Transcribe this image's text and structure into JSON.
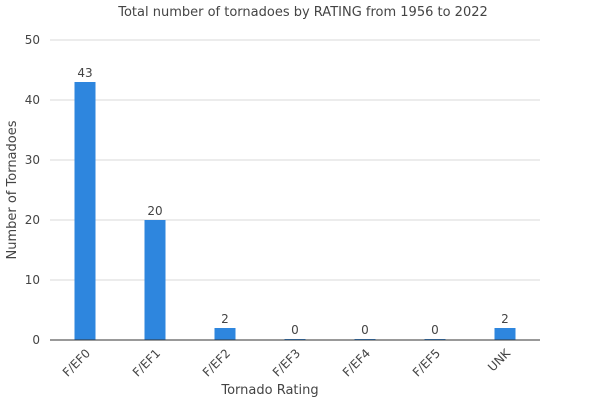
{
  "chart_data": {
    "type": "bar",
    "title": "Total number of tornadoes by RATING from 1956 to 2022",
    "xlabel": "Tornado Rating",
    "ylabel": "Number of Tornadoes",
    "categories": [
      "F/EF0",
      "F/EF1",
      "F/EF2",
      "F/EF3",
      "F/EF4",
      "F/EF5",
      "UNK"
    ],
    "values": [
      43,
      20,
      2,
      0,
      0,
      0,
      2
    ],
    "ylim": [
      0,
      50
    ],
    "yticks": [
      0,
      10,
      20,
      30,
      40,
      50
    ],
    "grid": true,
    "legend": "none",
    "bar_color": "#2e86de"
  }
}
